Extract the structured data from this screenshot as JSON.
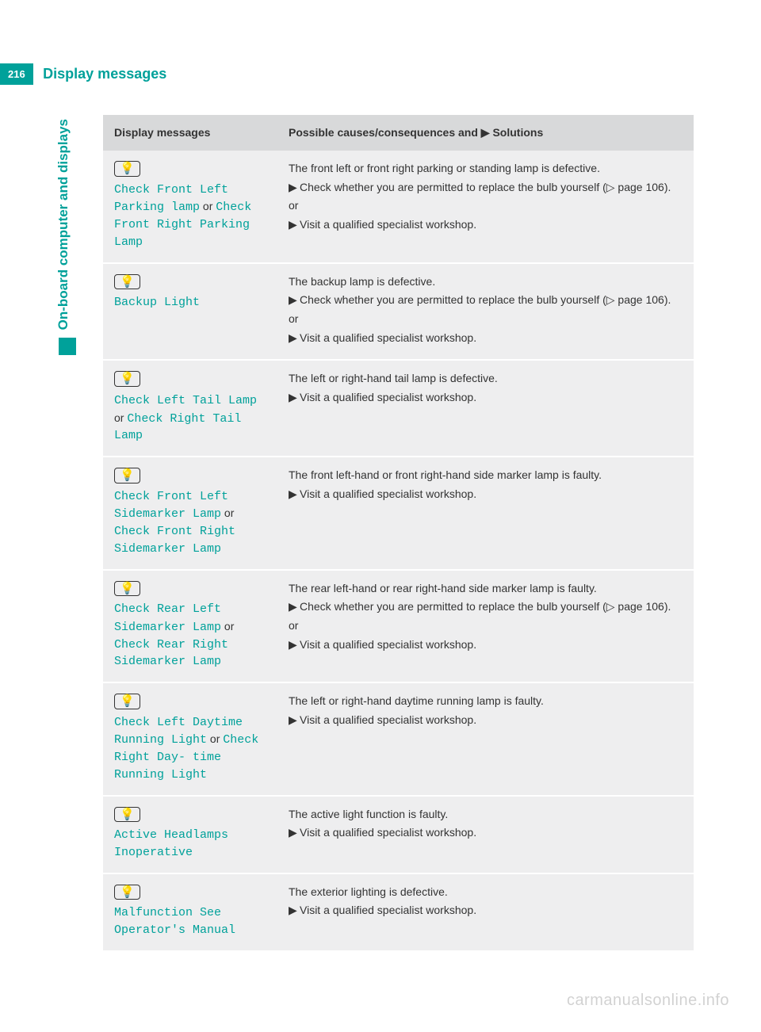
{
  "page": {
    "number": "216",
    "section_title": "Display messages",
    "side_tab": "On-board computer and displays",
    "watermark": "carmanualsonline.info"
  },
  "colors": {
    "brand": "#00a19a",
    "header_row_bg": "#d8d9da",
    "row_bg": "#eeeeef",
    "text": "#333333",
    "background": "#ffffff"
  },
  "table": {
    "headers": {
      "col1": "Display messages",
      "col2_prefix": "Possible causes/consequences and ",
      "col2_suffix": " Solutions"
    },
    "icon_glyph": "💡",
    "triangle": "▶",
    "page_ref_glyph": "▷",
    "rows": [
      {
        "msg_parts": [
          "Check Front Left Parking lamp",
          " or ",
          "Check Front Right Parking Lamp"
        ],
        "lead": "The front left or front right parking or standing lamp is defective.",
        "bullets": [
          {
            "text": "Check whether you are permitted to replace the bulb yourself (",
            "page_ref": "page 106",
            "close": ")."
          }
        ],
        "or": "or",
        "bullets2": [
          {
            "text": "Visit a qualified specialist workshop."
          }
        ]
      },
      {
        "msg_parts": [
          "Backup Light"
        ],
        "lead": "The backup lamp is defective.",
        "bullets": [
          {
            "text": "Check whether you are permitted to replace the bulb yourself (",
            "page_ref": "page 106",
            "close": ")."
          }
        ],
        "or": "or",
        "bullets2": [
          {
            "text": "Visit a qualified specialist workshop."
          }
        ]
      },
      {
        "msg_parts": [
          "Check Left Tail Lamp",
          " or ",
          "Check Right Tail Lamp"
        ],
        "lead": "The left or right-hand tail lamp is defective.",
        "bullets": [
          {
            "text": "Visit a qualified specialist workshop."
          }
        ]
      },
      {
        "msg_parts": [
          "Check Front Left Sidemarker Lamp",
          " or ",
          "Check Front Right Sidemarker Lamp"
        ],
        "lead": "The front left-hand or front right-hand side marker lamp is faulty.",
        "bullets": [
          {
            "text": "Visit a qualified specialist workshop."
          }
        ]
      },
      {
        "msg_parts": [
          "Check Rear Left Sidemarker Lamp",
          " or ",
          "Check Rear Right Sidemarker Lamp"
        ],
        "lead": "The rear left-hand or rear right-hand side marker lamp is faulty.",
        "bullets": [
          {
            "text": "Check whether you are permitted to replace the bulb yourself (",
            "page_ref": "page 106",
            "close": ")."
          }
        ],
        "or": "or",
        "bullets2": [
          {
            "text": "Visit a qualified specialist workshop."
          }
        ]
      },
      {
        "msg_parts": [
          "Check Left Daytime Running Light",
          " or ",
          "Check Right Day‐ time Running Light"
        ],
        "lead": "The left or right-hand daytime running lamp is faulty.",
        "bullets": [
          {
            "text": "Visit a qualified specialist workshop."
          }
        ]
      },
      {
        "msg_parts": [
          "Active Headlamps Inoperative"
        ],
        "lead": "The active light function is faulty.",
        "bullets": [
          {
            "text": "Visit a qualified specialist workshop."
          }
        ]
      },
      {
        "msg_parts": [
          "Malfunction See Operator's Manual"
        ],
        "lead": "The exterior lighting is defective.",
        "bullets": [
          {
            "text": "Visit a qualified specialist workshop."
          }
        ]
      }
    ]
  }
}
